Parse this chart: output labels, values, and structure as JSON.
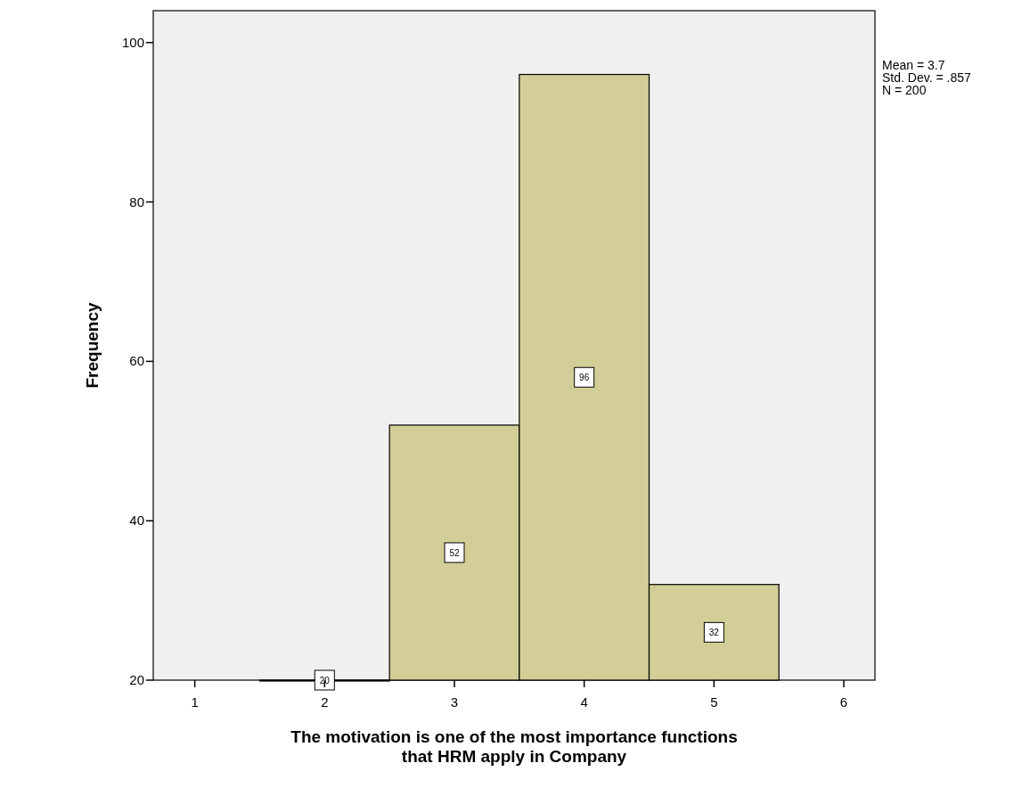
{
  "chart_data": {
    "type": "histogram",
    "xlabel": "The motivation is one of the most importance functions that HRM apply in Company",
    "ylabel": "Frequency",
    "bins": [
      1.5,
      2.5,
      3.5,
      4.5,
      5.5
    ],
    "values": [
      20,
      52,
      96,
      32
    ],
    "color": "#d3ce97",
    "xlim": [
      0.68,
      6.24
    ],
    "xticks": [
      1,
      2,
      3,
      4,
      5,
      6
    ],
    "ylim": [
      20,
      104
    ],
    "yticks": [
      20,
      40,
      60,
      80,
      100
    ],
    "data_labels": true,
    "grid": false,
    "annotations": [
      "Mean = 3.7",
      "Std. Dev. = .857",
      "N = 200"
    ]
  }
}
